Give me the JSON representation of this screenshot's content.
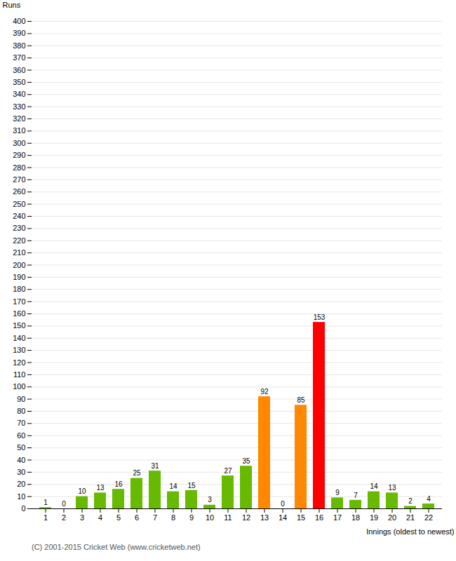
{
  "chart_data": {
    "type": "bar",
    "xlabel": "Innings (oldest to newest)",
    "ylabel": "Runs",
    "categories": [
      "1",
      "2",
      "3",
      "4",
      "5",
      "6",
      "7",
      "8",
      "9",
      "10",
      "11",
      "12",
      "13",
      "14",
      "15",
      "16",
      "17",
      "18",
      "19",
      "20",
      "21",
      "22"
    ],
    "values": [
      1,
      0,
      10,
      13,
      16,
      25,
      31,
      14,
      15,
      3,
      27,
      35,
      92,
      0,
      85,
      153,
      9,
      7,
      14,
      13,
      2,
      4
    ],
    "colors": [
      "#66bb00",
      "#66bb00",
      "#66bb00",
      "#66bb00",
      "#66bb00",
      "#66bb00",
      "#66bb00",
      "#66bb00",
      "#66bb00",
      "#66bb00",
      "#66bb00",
      "#66bb00",
      "#ff8800",
      "#66bb00",
      "#ff8800",
      "#ff0000",
      "#66bb00",
      "#66bb00",
      "#66bb00",
      "#66bb00",
      "#66bb00",
      "#66bb00"
    ],
    "ylim": [
      0,
      400
    ],
    "yticks": [
      0,
      10,
      20,
      30,
      40,
      50,
      60,
      70,
      80,
      90,
      100,
      110,
      120,
      130,
      140,
      150,
      160,
      170,
      180,
      190,
      200,
      210,
      220,
      230,
      240,
      250,
      260,
      270,
      280,
      290,
      300,
      310,
      320,
      330,
      340,
      350,
      360,
      370,
      380,
      390,
      400
    ],
    "grid": true,
    "data_labels": true,
    "annotations": [
      "(C) 2001-2015 Cricket Web (www.cricketweb.net)"
    ]
  }
}
